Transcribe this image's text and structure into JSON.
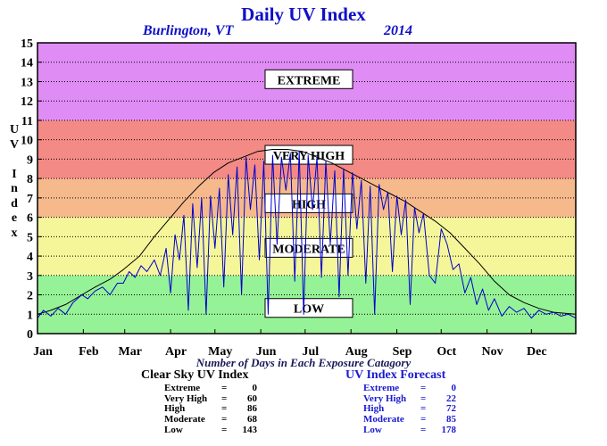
{
  "header": {
    "title": "Daily UV Index",
    "city": "Burlington, VT",
    "year": "2014"
  },
  "y_axis_letters": [
    "U",
    "V",
    "",
    "I",
    "n",
    "d",
    "e",
    "x"
  ],
  "x_caption": "Number of Days in Each Exposure Catagory",
  "clear_sky": {
    "title": "Clear Sky UV Index",
    "rows": [
      {
        "label": "Extreme",
        "eq": "=",
        "value": "0"
      },
      {
        "label": "Very High",
        "eq": "=",
        "value": "60"
      },
      {
        "label": "High",
        "eq": "=",
        "value": "86"
      },
      {
        "label": "Moderate",
        "eq": "=",
        "value": "68"
      },
      {
        "label": "Low",
        "eq": "=",
        "value": "143"
      }
    ]
  },
  "forecast": {
    "title": "UV Index Forecast",
    "rows": [
      {
        "label": "Extreme",
        "eq": "=",
        "value": "0"
      },
      {
        "label": "Very High",
        "eq": "=",
        "value": "22"
      },
      {
        "label": "High",
        "eq": "=",
        "value": "72"
      },
      {
        "label": "Moderate",
        "eq": "=",
        "value": "85"
      },
      {
        "label": "Low",
        "eq": "=",
        "value": "178"
      }
    ]
  },
  "colors": {
    "extreme": "#df8cf5",
    "very_high": "#f38a85",
    "high": "#f6b98c",
    "moderate": "#f5f59a",
    "low": "#96f296",
    "clear_sky_line": "#000000",
    "forecast_line": "#0000cc"
  },
  "chart_data": {
    "type": "line",
    "title": "Daily UV Index",
    "subtitle": "Burlington, VT 2014",
    "ylabel": "UV Index",
    "xlabel": "",
    "ylim": [
      0,
      15
    ],
    "yticks": [
      0,
      1,
      2,
      3,
      4,
      5,
      6,
      7,
      8,
      9,
      10,
      11,
      12,
      13,
      14,
      15
    ],
    "months": [
      "Jan",
      "Feb",
      "Mar",
      "Apr",
      "May",
      "Jun",
      "Jul",
      "Aug",
      "Sep",
      "Oct",
      "Nov",
      "Dec"
    ],
    "grid": true,
    "bands": [
      {
        "label": "LOW",
        "from": 0,
        "to": 3
      },
      {
        "label": "MODERATE",
        "from": 3,
        "to": 6
      },
      {
        "label": "HIGH",
        "from": 6,
        "to": 8
      },
      {
        "label": "VERY HIGH",
        "from": 8,
        "to": 11
      },
      {
        "label": "EXTREME",
        "from": 11,
        "to": 15
      }
    ],
    "series": [
      {
        "name": "Clear Sky UV Index",
        "color": "#000000",
        "x_day": [
          1,
          10,
          20,
          31,
          40,
          50,
          59,
          70,
          80,
          90,
          100,
          110,
          120,
          130,
          140,
          150,
          160,
          170,
          180,
          190,
          200,
          210,
          220,
          230,
          240,
          250,
          258,
          270,
          280,
          290,
          300,
          310,
          320,
          330,
          340,
          350,
          365
        ],
        "values": [
          1.0,
          1.2,
          1.5,
          2.0,
          2.4,
          2.8,
          3.3,
          4.0,
          5.0,
          5.9,
          6.8,
          7.6,
          8.3,
          8.8,
          9.1,
          9.4,
          9.5,
          9.5,
          9.4,
          9.1,
          8.8,
          8.4,
          8.0,
          7.6,
          7.2,
          6.8,
          6.4,
          5.8,
          5.2,
          4.4,
          3.6,
          2.7,
          2.0,
          1.6,
          1.3,
          1.1,
          1.0
        ]
      },
      {
        "name": "UV Index Forecast",
        "color": "#0000cc",
        "x_day": [
          1,
          5,
          10,
          15,
          20,
          25,
          31,
          35,
          40,
          45,
          50,
          55,
          59,
          63,
          67,
          71,
          75,
          80,
          84,
          88,
          91,
          94,
          97,
          100,
          103,
          106,
          109,
          112,
          115,
          118,
          121,
          124,
          127,
          130,
          133,
          136,
          139,
          142,
          145,
          148,
          151,
          154,
          157,
          160,
          163,
          166,
          169,
          172,
          175,
          178,
          181,
          184,
          187,
          190,
          193,
          196,
          199,
          202,
          205,
          208,
          211,
          214,
          217,
          220,
          223,
          226,
          229,
          232,
          235,
          238,
          241,
          244,
          247,
          250,
          253,
          256,
          259,
          262,
          266,
          270,
          274,
          278,
          282,
          286,
          290,
          294,
          298,
          302,
          306,
          310,
          315,
          320,
          325,
          330,
          335,
          340,
          345,
          350,
          355,
          360,
          365
        ],
        "values": [
          0.8,
          1.2,
          0.9,
          1.3,
          1.0,
          1.6,
          2.0,
          1.8,
          2.2,
          2.4,
          2.0,
          2.6,
          2.6,
          3.2,
          2.9,
          3.5,
          3.2,
          3.8,
          3.0,
          4.4,
          2.1,
          5.1,
          3.8,
          6.1,
          1.2,
          6.7,
          3.4,
          7.0,
          1.0,
          7.1,
          4.4,
          7.5,
          2.4,
          8.2,
          5.1,
          8.6,
          2.0,
          9.1,
          6.4,
          8.7,
          3.8,
          8.9,
          1.0,
          9.2,
          4.6,
          9.1,
          7.4,
          9.3,
          2.7,
          9.4,
          1.0,
          9.2,
          6.4,
          9.1,
          2.9,
          8.9,
          4.6,
          8.4,
          1.9,
          8.5,
          3.0,
          8.3,
          5.4,
          7.9,
          2.6,
          7.6,
          1.0,
          7.7,
          6.4,
          7.3,
          3.2,
          7.1,
          5.1,
          6.9,
          1.5,
          6.5,
          5.2,
          6.2,
          3.0,
          2.6,
          5.4,
          4.6,
          3.3,
          3.6,
          2.1,
          2.9,
          1.5,
          2.3,
          1.2,
          1.8,
          0.9,
          1.4,
          1.1,
          1.3,
          0.8,
          1.2,
          1.0,
          1.1,
          0.9,
          1.0,
          0.8
        ]
      }
    ]
  }
}
